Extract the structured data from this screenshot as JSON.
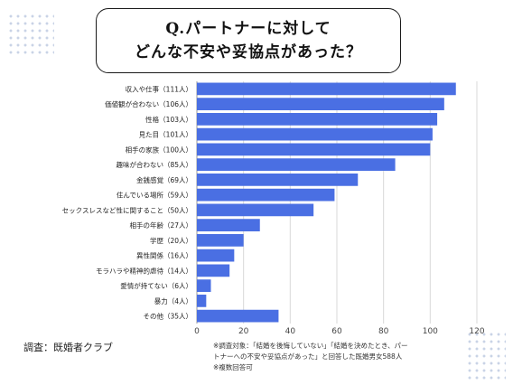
{
  "header": {
    "title_line1": "Q.パートナーに対して",
    "title_line2": "どんな不安や妥協点があった？"
  },
  "chart_data": {
    "type": "bar",
    "orientation": "horizontal",
    "categories": [
      "収入や仕事（111人）",
      "価値観が合わない（106人）",
      "性格（103人）",
      "見た目（101人）",
      "相手の家族（100人）",
      "趣味が合わない（85人）",
      "金銭感覚（69人）",
      "住んでいる場所（59人）",
      "セックスレスなど性に関すること（50人）",
      "相手の年齢（27人）",
      "学歴（20人）",
      "異性関係（16人）",
      "モラハラや精神的虐待（14人）",
      "愛情が持てない（6人）",
      "暴力（4人）",
      "その他（35人）"
    ],
    "values": [
      111,
      106,
      103,
      101,
      100,
      85,
      69,
      59,
      50,
      27,
      20,
      16,
      14,
      6,
      4,
      35
    ],
    "xlim": [
      0,
      120
    ],
    "xticks": [
      "0",
      "20",
      "40",
      "60",
      "80",
      "100",
      "120"
    ],
    "bar_color": "#4a6fe3",
    "grid": true
  },
  "footer": {
    "source": "調査：既婚者クラブ",
    "note_line1": "※調査対象：「結婚を後悔していない」「結婚を決めたとき、パー",
    "note_line2": "トナーへの不安や妥協点があった」と回答した既婚男女588人",
    "note_line3": "※複数回答可"
  }
}
